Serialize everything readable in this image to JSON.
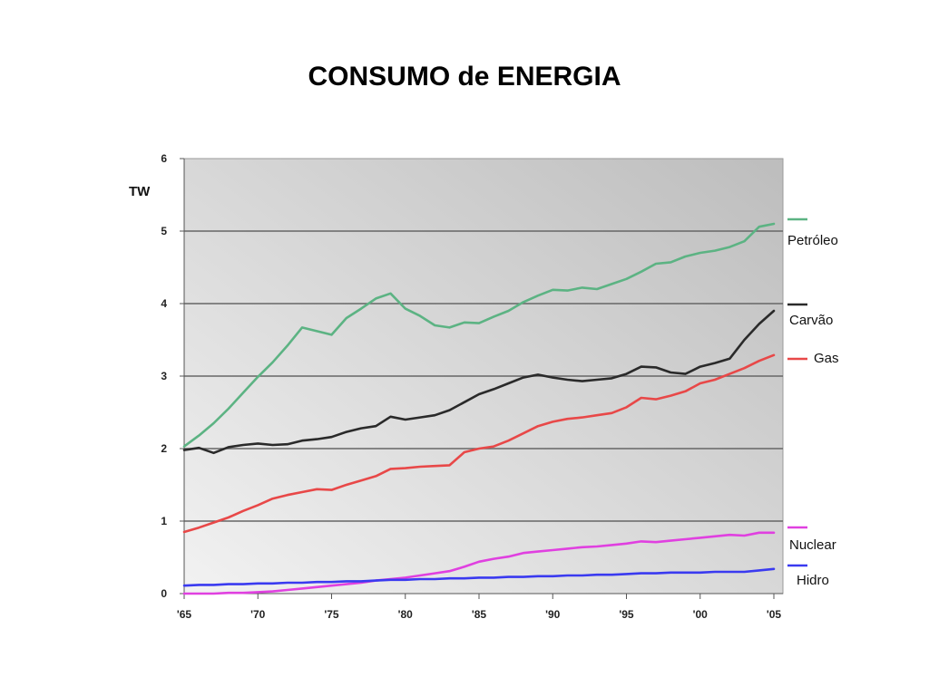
{
  "title": "CONSUMO de ENERGIA",
  "chart_data": {
    "type": "line",
    "title": "CONSUMO de ENERGIA",
    "ylabel": "TW",
    "xlabel": "",
    "xlim": [
      1965,
      2005
    ],
    "ylim": [
      0,
      6
    ],
    "y_ticks": [
      "0",
      "1",
      "2",
      "3",
      "4",
      "5",
      "6"
    ],
    "x_ticks": [
      {
        "x": 1965,
        "label": "'65"
      },
      {
        "x": 1970,
        "label": "'70"
      },
      {
        "x": 1975,
        "label": "'75"
      },
      {
        "x": 1980,
        "label": "'80"
      },
      {
        "x": 1985,
        "label": "'85"
      },
      {
        "x": 1990,
        "label": "'90"
      },
      {
        "x": 1995,
        "label": "'95"
      },
      {
        "x": 2000,
        "label": "'00"
      },
      {
        "x": 2005,
        "label": "'05"
      }
    ],
    "grid": "horizontal",
    "legend": "right",
    "x": [
      1965,
      1966,
      1967,
      1968,
      1969,
      1970,
      1971,
      1972,
      1973,
      1974,
      1975,
      1976,
      1977,
      1978,
      1979,
      1980,
      1981,
      1982,
      1983,
      1984,
      1985,
      1986,
      1987,
      1988,
      1989,
      1990,
      1991,
      1992,
      1993,
      1994,
      1995,
      1996,
      1997,
      1998,
      1999,
      2000,
      2001,
      2002,
      2003,
      2004,
      2005
    ],
    "series": [
      {
        "name": "Petróleo",
        "color": "#5cb383",
        "values": [
          2.03,
          2.18,
          2.35,
          2.55,
          2.77,
          2.99,
          3.19,
          3.42,
          3.67,
          3.62,
          3.57,
          3.8,
          3.93,
          4.07,
          4.14,
          3.93,
          3.83,
          3.7,
          3.67,
          3.74,
          3.73,
          3.82,
          3.9,
          4.02,
          4.11,
          4.19,
          4.18,
          4.22,
          4.2,
          4.27,
          4.34,
          4.44,
          4.55,
          4.57,
          4.65,
          4.7,
          4.73,
          4.78,
          4.86,
          5.06,
          5.1
        ]
      },
      {
        "name": "Carvão",
        "color": "#2a2a2a",
        "values": [
          1.98,
          2.01,
          1.94,
          2.02,
          2.05,
          2.07,
          2.05,
          2.06,
          2.11,
          2.13,
          2.16,
          2.23,
          2.28,
          2.31,
          2.44,
          2.4,
          2.43,
          2.46,
          2.53,
          2.64,
          2.75,
          2.82,
          2.9,
          2.98,
          3.02,
          2.98,
          2.95,
          2.93,
          2.95,
          2.97,
          3.03,
          3.13,
          3.12,
          3.05,
          3.03,
          3.13,
          3.18,
          3.24,
          3.5,
          3.72,
          3.9
        ]
      },
      {
        "name": "Gas",
        "color": "#e84848",
        "values": [
          0.85,
          0.91,
          0.98,
          1.05,
          1.14,
          1.22,
          1.31,
          1.36,
          1.4,
          1.44,
          1.43,
          1.5,
          1.56,
          1.62,
          1.72,
          1.73,
          1.75,
          1.76,
          1.77,
          1.95,
          2.0,
          2.03,
          2.11,
          2.21,
          2.31,
          2.37,
          2.41,
          2.43,
          2.46,
          2.49,
          2.57,
          2.7,
          2.68,
          2.73,
          2.79,
          2.9,
          2.95,
          3.03,
          3.11,
          3.21,
          3.29
        ]
      },
      {
        "name": "Nuclear",
        "color": "#e040e0",
        "values": [
          0.0,
          0.0,
          0.0,
          0.01,
          0.01,
          0.02,
          0.03,
          0.05,
          0.07,
          0.09,
          0.11,
          0.13,
          0.15,
          0.18,
          0.2,
          0.22,
          0.25,
          0.28,
          0.31,
          0.37,
          0.44,
          0.48,
          0.51,
          0.56,
          0.58,
          0.6,
          0.62,
          0.64,
          0.65,
          0.67,
          0.69,
          0.72,
          0.71,
          0.73,
          0.75,
          0.77,
          0.79,
          0.81,
          0.8,
          0.84,
          0.84
        ]
      },
      {
        "name": "Hidro",
        "color": "#3a3af0",
        "values": [
          0.11,
          0.12,
          0.12,
          0.13,
          0.13,
          0.14,
          0.14,
          0.15,
          0.15,
          0.16,
          0.16,
          0.17,
          0.17,
          0.18,
          0.19,
          0.19,
          0.2,
          0.2,
          0.21,
          0.21,
          0.22,
          0.22,
          0.23,
          0.23,
          0.24,
          0.24,
          0.25,
          0.25,
          0.26,
          0.26,
          0.27,
          0.28,
          0.28,
          0.29,
          0.29,
          0.29,
          0.3,
          0.3,
          0.3,
          0.32,
          0.34
        ]
      }
    ]
  }
}
